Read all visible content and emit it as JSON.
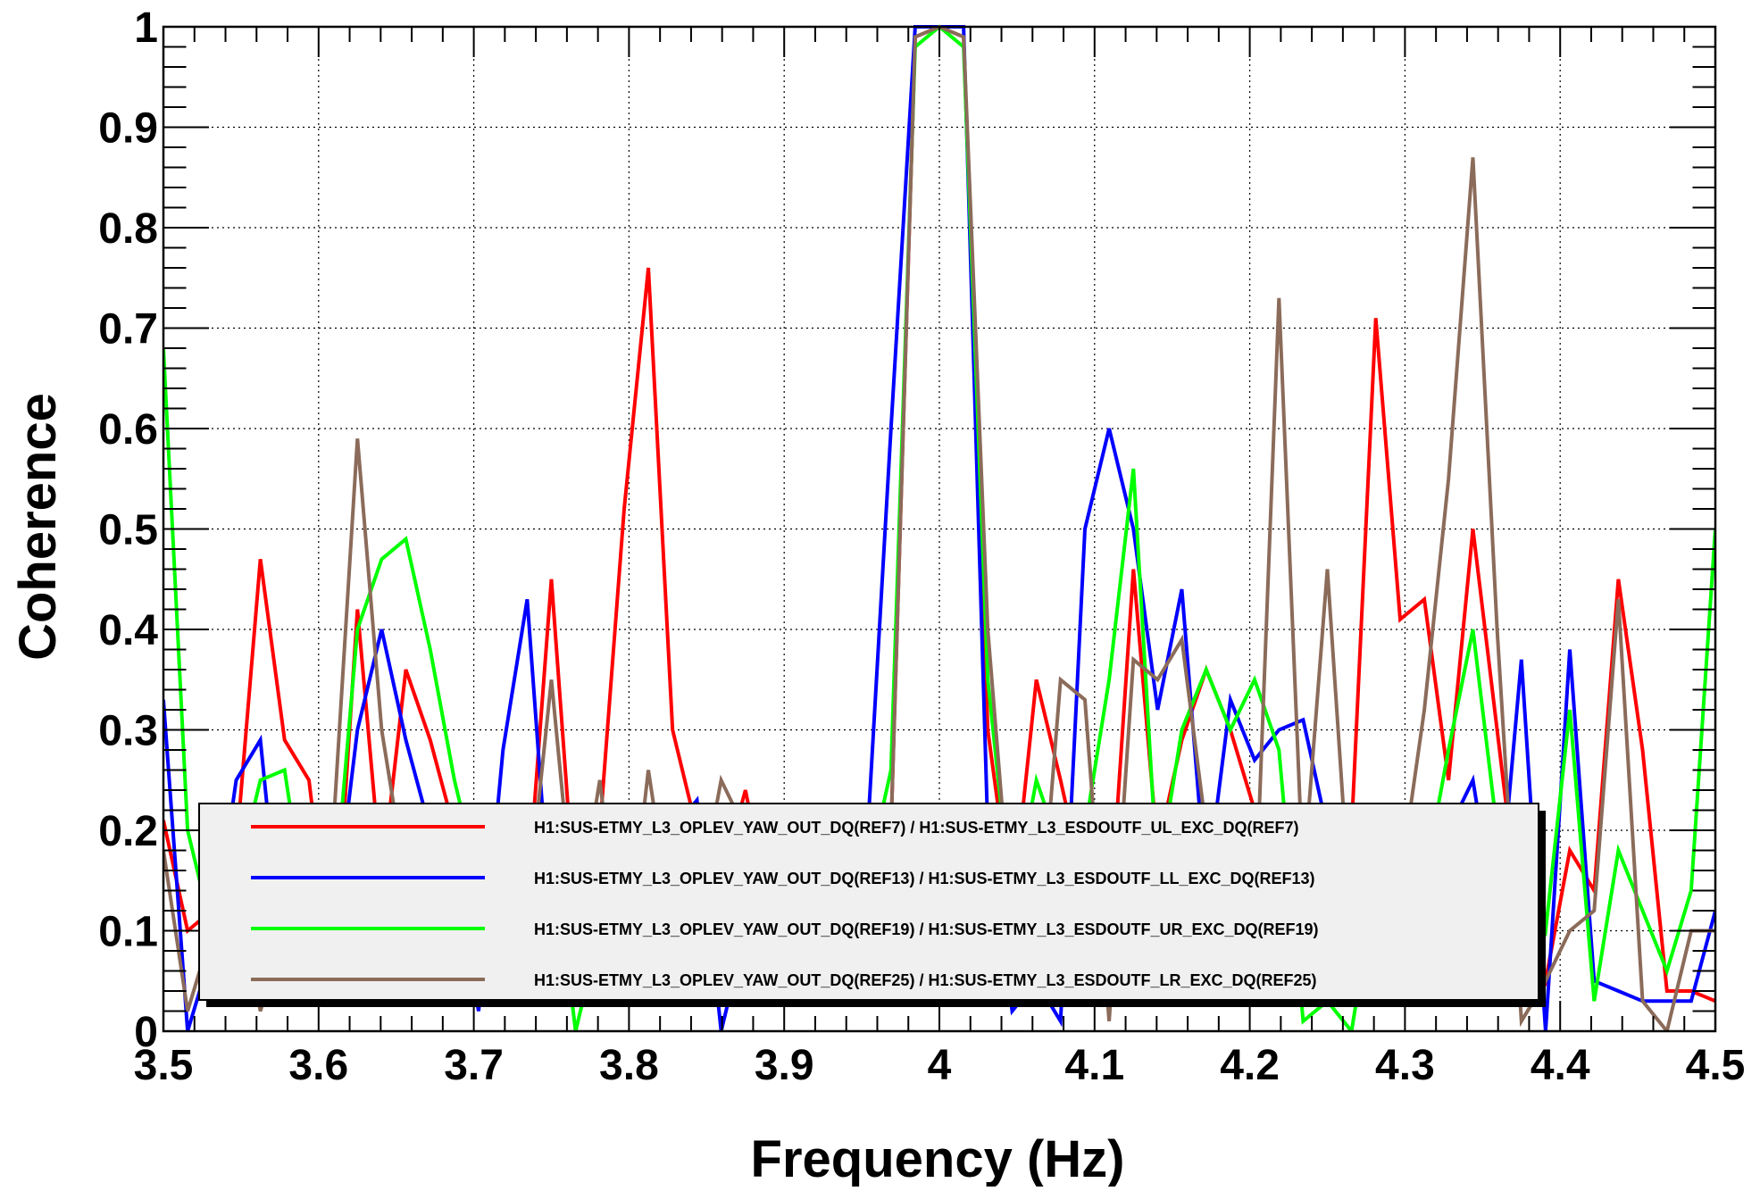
{
  "chart_data": {
    "type": "line",
    "title": "",
    "xlabel": "Frequency (Hz)",
    "ylabel": "Coherence",
    "xlim": [
      3.5,
      4.5
    ],
    "ylim": [
      0,
      1
    ],
    "x_ticks": [
      3.5,
      3.6,
      3.7,
      3.8,
      3.9,
      4.0,
      4.1,
      4.2,
      4.3,
      4.4,
      4.5
    ],
    "x_tick_labels": [
      "3.5",
      "3.6",
      "3.7",
      "3.8",
      "3.9",
      "4",
      "4.1",
      "4.2",
      "4.3",
      "4.4",
      "4.5"
    ],
    "y_ticks": [
      0,
      0.1,
      0.2,
      0.3,
      0.4,
      0.5,
      0.6,
      0.7,
      0.8,
      0.9,
      1.0
    ],
    "y_tick_labels": [
      "0",
      "0.1",
      "0.2",
      "0.3",
      "0.4",
      "0.5",
      "0.6",
      "0.7",
      "0.8",
      "0.9",
      "1"
    ],
    "grid": true,
    "grid_style": "dotted",
    "legend_position": "bottom-center",
    "x": [
      3.5,
      3.5156,
      3.5312,
      3.5469,
      3.5625,
      3.5781,
      3.5938,
      3.6094,
      3.625,
      3.6406,
      3.6562,
      3.6719,
      3.6875,
      3.7031,
      3.7188,
      3.7344,
      3.75,
      3.7656,
      3.7812,
      3.7969,
      3.8125,
      3.8281,
      3.8438,
      3.8594,
      3.875,
      3.8906,
      3.9062,
      3.9219,
      3.9375,
      3.9531,
      3.9688,
      3.9844,
      4.0,
      4.0156,
      4.0312,
      4.0469,
      4.0625,
      4.0781,
      4.0938,
      4.1094,
      4.125,
      4.1406,
      4.1562,
      4.1719,
      4.1875,
      4.2031,
      4.2188,
      4.2344,
      4.25,
      4.2656,
      4.2812,
      4.2969,
      4.3125,
      4.3281,
      4.3438,
      4.3594,
      4.375,
      4.3906,
      4.4062,
      4.4219,
      4.4375,
      4.4531,
      4.4688,
      4.4844,
      4.5
    ],
    "series": [
      {
        "name": "H1:SUS-ETMY_L3_OPLEV_YAW_OUT_DQ(REF7) / H1:SUS-ETMY_L3_ESDOUTF_UL_EXC_DQ(REF7)",
        "color": "#ff0000",
        "values": [
          0.21,
          0.1,
          0.12,
          0.18,
          0.47,
          0.29,
          0.25,
          0.05,
          0.42,
          0.15,
          0.36,
          0.29,
          0.2,
          0.15,
          0.1,
          0.13,
          0.45,
          0.12,
          0.2,
          0.52,
          0.76,
          0.3,
          0.2,
          0.15,
          0.24,
          0.12,
          0.15,
          0.1,
          0.12,
          0.14,
          0.2,
          0.99,
          1.0,
          0.99,
          0.3,
          0.12,
          0.35,
          0.25,
          0.14,
          0.1,
          0.46,
          0.18,
          0.29,
          0.36,
          0.3,
          0.22,
          0.15,
          0.1,
          0.12,
          0.2,
          0.71,
          0.41,
          0.43,
          0.25,
          0.5,
          0.3,
          0.1,
          0.05,
          0.18,
          0.14,
          0.45,
          0.28,
          0.04,
          0.04,
          0.03
        ]
      },
      {
        "name": "H1:SUS-ETMY_L3_OPLEV_YAW_OUT_DQ(REF13) / H1:SUS-ETMY_L3_ESDOUTF_LL_EXC_DQ(REF13)",
        "color": "#0000ff",
        "values": [
          0.33,
          0.0,
          0.08,
          0.25,
          0.29,
          0.05,
          0.15,
          0.1,
          0.3,
          0.4,
          0.29,
          0.2,
          0.15,
          0.02,
          0.28,
          0.43,
          0.1,
          0.15,
          0.12,
          0.18,
          0.1,
          0.2,
          0.23,
          0.0,
          0.1,
          0.15,
          0.12,
          0.1,
          0.15,
          0.18,
          0.6,
          1.0,
          1.0,
          1.0,
          0.2,
          0.02,
          0.05,
          0.01,
          0.5,
          0.6,
          0.5,
          0.32,
          0.44,
          0.14,
          0.33,
          0.27,
          0.3,
          0.31,
          0.2,
          0.12,
          0.08,
          0.1,
          0.15,
          0.2,
          0.25,
          0.1,
          0.37,
          0.0,
          0.38,
          0.05,
          0.04,
          0.03,
          0.03,
          0.03,
          0.12
        ]
      },
      {
        "name": "H1:SUS-ETMY_L3_OPLEV_YAW_OUT_DQ(REF19) / H1:SUS-ETMY_L3_ESDOUTF_UR_EXC_DQ(REF19)",
        "color": "#00ff00",
        "values": [
          0.68,
          0.2,
          0.1,
          0.15,
          0.25,
          0.26,
          0.1,
          0.12,
          0.4,
          0.47,
          0.49,
          0.38,
          0.25,
          0.15,
          0.1,
          0.12,
          0.2,
          0.0,
          0.1,
          0.15,
          0.12,
          0.18,
          0.15,
          0.1,
          0.12,
          0.1,
          0.15,
          0.12,
          0.1,
          0.15,
          0.26,
          0.98,
          1.0,
          0.98,
          0.35,
          0.12,
          0.25,
          0.18,
          0.2,
          0.35,
          0.56,
          0.15,
          0.3,
          0.36,
          0.3,
          0.35,
          0.28,
          0.01,
          0.03,
          0.0,
          0.15,
          0.05,
          0.15,
          0.28,
          0.4,
          0.2,
          0.15,
          0.1,
          0.32,
          0.03,
          0.18,
          0.12,
          0.06,
          0.14,
          0.5
        ]
      },
      {
        "name": "H1:SUS-ETMY_L3_OPLEV_YAW_OUT_DQ(REF25) / H1:SUS-ETMY_L3_ESDOUTF_LR_EXC_DQ(REF25)",
        "color": "#8b6b5a",
        "values": [
          0.18,
          0.02,
          0.1,
          0.15,
          0.02,
          0.1,
          0.15,
          0.2,
          0.59,
          0.3,
          0.15,
          0.1,
          0.12,
          0.15,
          0.1,
          0.12,
          0.35,
          0.1,
          0.25,
          0.05,
          0.26,
          0.1,
          0.12,
          0.25,
          0.2,
          0.15,
          0.1,
          0.12,
          0.15,
          0.18,
          0.2,
          0.99,
          1.0,
          0.99,
          0.4,
          0.1,
          0.05,
          0.35,
          0.33,
          0.01,
          0.37,
          0.35,
          0.39,
          0.2,
          0.15,
          0.1,
          0.73,
          0.15,
          0.46,
          0.1,
          0.12,
          0.15,
          0.32,
          0.55,
          0.87,
          0.4,
          0.01,
          0.05,
          0.1,
          0.12,
          0.43,
          0.03,
          0.0,
          0.1,
          0.1
        ]
      }
    ]
  }
}
